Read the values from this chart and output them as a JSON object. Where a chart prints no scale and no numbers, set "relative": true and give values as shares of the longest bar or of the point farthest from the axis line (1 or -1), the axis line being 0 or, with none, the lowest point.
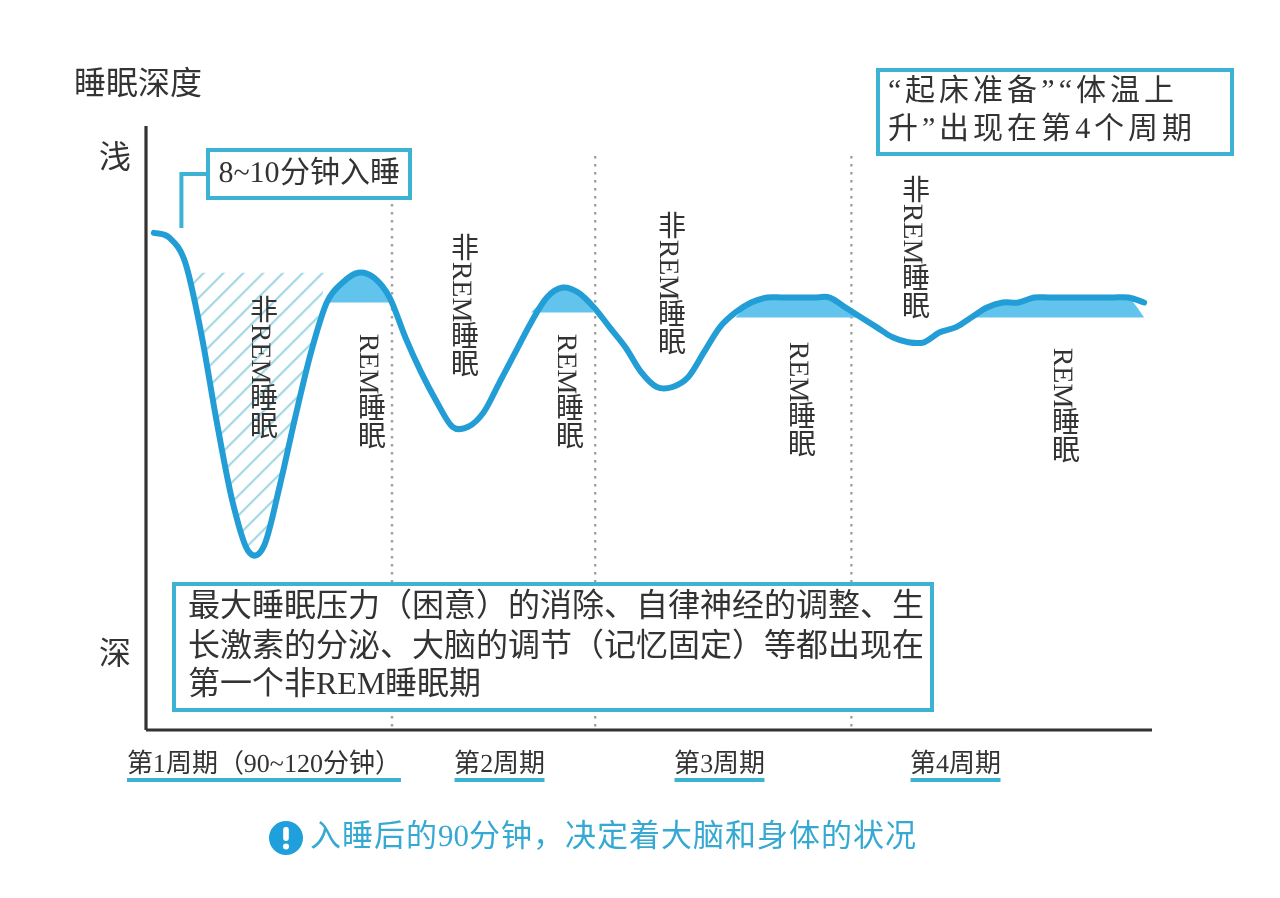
{
  "chart_data": {
    "type": "line",
    "relative": true,
    "ylabel": "睡眠深度",
    "categories": [
      null,
      null,
      null,
      null,
      null,
      null,
      null,
      "第1周期（90~120分钟）",
      null,
      null,
      null,
      null,
      null,
      null,
      null,
      null,
      null,
      null,
      null,
      null,
      null,
      null,
      "第2周期",
      null,
      null,
      null,
      null,
      null,
      null,
      null,
      null,
      null,
      null,
      null,
      null,
      null,
      "第3周期",
      null,
      null,
      null,
      null,
      null,
      null,
      null,
      null,
      null,
      null,
      null,
      null,
      null,
      null,
      "第4周期",
      null,
      null,
      null,
      null,
      null,
      null,
      null,
      null,
      null,
      null,
      null,
      null
    ],
    "series": [
      {
        "type": "area",
        "line_style": "solid",
        "color": "#a3d8e4",
        "values": [
          null,
          null,
          0.92,
          0.8,
          0.62,
          0.46,
          0.36,
          0.37,
          0.49,
          0.63,
          0.76,
          0.92,
          null,
          null,
          null,
          null,
          null,
          null,
          null,
          null,
          null,
          null,
          null,
          null,
          null,
          null,
          null,
          null,
          null,
          null,
          null,
          null,
          null,
          null,
          null,
          null,
          null,
          null,
          null,
          null,
          null,
          null,
          null,
          null,
          null,
          null,
          null,
          null,
          null,
          null,
          null,
          null,
          null,
          null,
          null,
          null,
          null,
          null,
          null,
          null,
          null,
          null,
          null,
          null
        ]
      },
      {
        "type": "area",
        "color": "#62c4ec",
        "values": [
          null,
          null,
          null,
          null,
          null,
          null,
          null,
          null,
          null,
          null,
          null,
          0.86,
          0.9,
          0.92,
          0.91,
          0.86,
          null,
          null,
          null,
          null,
          null,
          null,
          null,
          null,
          null,
          null,
          null,
          null,
          null,
          null,
          null,
          null,
          null,
          null,
          null,
          null,
          null,
          null,
          null,
          null,
          null,
          null,
          null,
          null,
          null,
          null,
          null,
          null,
          null,
          null,
          null,
          null,
          null,
          null,
          null,
          null,
          null,
          null,
          null,
          null,
          null,
          null,
          null,
          null
        ]
      },
      {
        "type": "area",
        "color": "#62c4ec",
        "values": [
          null,
          null,
          null,
          null,
          null,
          null,
          null,
          null,
          null,
          null,
          null,
          null,
          null,
          null,
          null,
          null,
          null,
          null,
          null,
          null,
          null,
          null,
          null,
          null,
          0.84,
          0.87,
          0.89,
          0.88,
          0.84,
          null,
          null,
          null,
          null,
          null,
          null,
          null,
          null,
          null,
          null,
          null,
          null,
          null,
          null,
          null,
          null,
          null,
          null,
          null,
          null,
          null,
          null,
          null,
          null,
          null,
          null,
          null,
          null,
          null,
          null,
          null,
          null,
          null,
          null,
          null
        ]
      },
      {
        "type": "area",
        "color": "#62c4ec",
        "values": [
          null,
          null,
          null,
          null,
          null,
          null,
          null,
          null,
          null,
          null,
          null,
          null,
          null,
          null,
          null,
          null,
          null,
          null,
          null,
          null,
          null,
          null,
          null,
          null,
          null,
          null,
          null,
          null,
          null,
          null,
          null,
          null,
          null,
          null,
          null,
          null,
          null,
          0.83,
          0.86,
          0.87,
          0.87,
          0.87,
          0.87,
          0.87,
          0.85,
          0.83,
          null,
          null,
          null,
          null,
          null,
          null,
          null,
          null,
          null,
          null,
          null,
          null,
          null,
          null,
          null,
          null,
          null,
          null
        ]
      },
      {
        "type": "area",
        "color": "#62c4ec",
        "values": [
          null,
          null,
          null,
          null,
          null,
          null,
          null,
          null,
          null,
          null,
          null,
          null,
          null,
          null,
          null,
          null,
          null,
          null,
          null,
          null,
          null,
          null,
          null,
          null,
          null,
          null,
          null,
          null,
          null,
          null,
          null,
          null,
          null,
          null,
          null,
          null,
          null,
          null,
          null,
          null,
          null,
          null,
          null,
          null,
          null,
          null,
          null,
          null,
          null,
          null,
          null,
          null,
          0.83,
          0.85,
          0.86,
          0.86,
          0.87,
          0.87,
          0.87,
          0.87,
          0.87,
          0.87,
          0.87,
          0.83
        ]
      },
      {
        "color": "#229dd6",
        "values": [
          1.0,
          0.99,
          0.94,
          0.8,
          0.62,
          0.46,
          0.36,
          0.37,
          0.49,
          0.63,
          0.76,
          0.86,
          0.9,
          0.92,
          0.91,
          0.87,
          0.79,
          0.72,
          0.66,
          0.61,
          0.61,
          0.64,
          0.7,
          0.76,
          0.82,
          0.87,
          0.89,
          0.88,
          0.85,
          0.81,
          0.77,
          0.72,
          0.69,
          0.69,
          0.71,
          0.76,
          0.81,
          0.84,
          0.86,
          0.87,
          0.87,
          0.87,
          0.87,
          0.87,
          0.85,
          0.83,
          0.81,
          0.79,
          0.78,
          0.78,
          0.8,
          0.81,
          0.83,
          0.85,
          0.86,
          0.86,
          0.87,
          0.87,
          0.87,
          0.87,
          0.87,
          0.87,
          0.87,
          0.86
        ]
      }
    ],
    "annotations": [
      "浅",
      "深",
      "8~10分钟入睡",
      "非REM睡眠",
      "REM睡眠",
      "非REM睡眠",
      "REM睡眠",
      "非REM睡眠",
      "REM睡眠",
      "非REM睡眠",
      "REM睡眠",
      "“起床准备”“体温上升”出现在第4个周期",
      "最大睡眠压力（困意）的消除、自律神经的调整、生长激素的分泌、大脑的调节（记忆固定）等都出现在第一个非REM睡眠期",
      "入睡后的90分钟，决定着大脑和身体的状况"
    ]
  }
}
